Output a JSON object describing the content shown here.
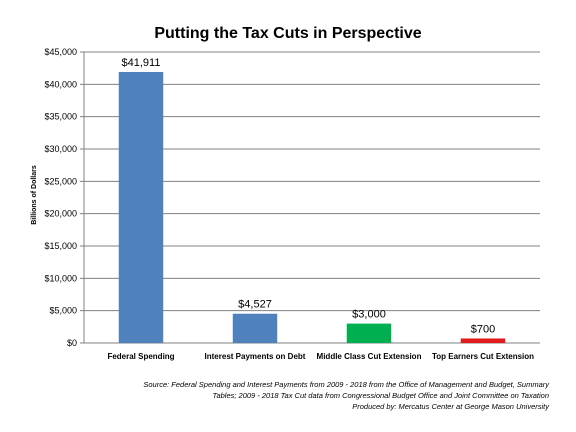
{
  "chart_data": {
    "type": "bar",
    "title": "Putting the Tax Cuts in Perspective",
    "ylabel": "Billions of Dollars",
    "xlabel": "",
    "ylim": [
      0,
      45000
    ],
    "yticks": [
      0,
      5000,
      10000,
      15000,
      20000,
      25000,
      30000,
      35000,
      40000,
      45000
    ],
    "ytick_labels": [
      "$0",
      "$5,000",
      "$10,000",
      "$15,000",
      "$20,000",
      "$25,000",
      "$30,000",
      "$35,000",
      "$40,000",
      "$45,000"
    ],
    "grid": true,
    "categories": [
      "Federal Spending",
      "Interest Payments on Debt",
      "Middle Class Cut Extension",
      "Top Earners Cut Extension"
    ],
    "values": [
      41911,
      4527,
      3000,
      700
    ],
    "data_labels": [
      "$41,911",
      "$4,527",
      "$3,000",
      "$700"
    ],
    "colors": [
      "#4f81bd",
      "#4f81bd",
      "#00b050",
      "#e31a1c"
    ]
  },
  "source_lines": [
    "Source: Federal Spending and Interest Payments from 2009 - 2018 from the Office of Management and Budget, Summary",
    "Tables;  2009  - 2018 Tax Cut data from Congressional Budget Office and Joint Committee on Taxation",
    "Produced by: Mercatus Center at George Mason University"
  ]
}
